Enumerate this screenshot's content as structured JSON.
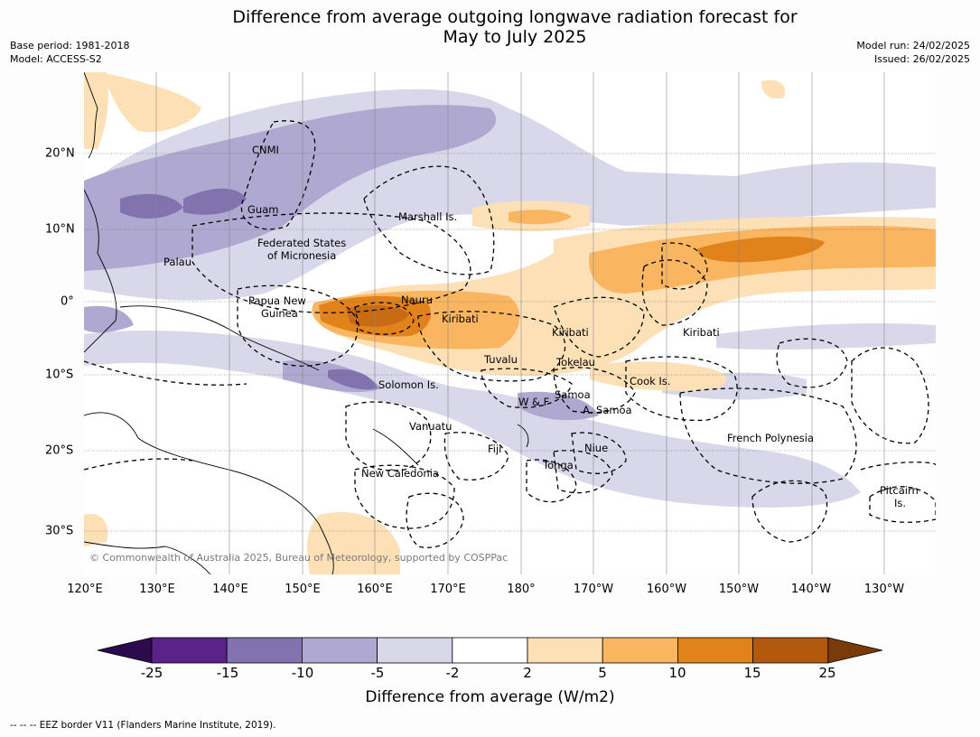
{
  "title_line1": "Difference from average outgoing longwave radiation forecast for",
  "title_line2": "May to July 2025",
  "base_period": "Base period: 1981-2018",
  "model": "Model: ACCESS-S2",
  "model_run": "Model run: 24/02/2025",
  "issued": "Issued: 26/02/2025",
  "lon_labels": [
    "120°E",
    "130°E",
    "140°E",
    "150°E",
    "160°E",
    "170°E",
    "180°",
    "170°W",
    "160°W",
    "150°W",
    "140°W",
    "130°W"
  ],
  "lat_labels": [
    "20°N",
    "10°N",
    "0°",
    "10°S",
    "20°S",
    "30°S"
  ],
  "copyright": "© Commonwealth of Australia 2025, Bureau of Meteorology, supported by COSPPac",
  "region_labels": {
    "cnmi": "CNMI",
    "guam": "Guam",
    "marshall": "Marshall Is.",
    "fsm1": "Federated States",
    "fsm2": "of Micronesia",
    "palau": "Palau",
    "png1": "Papua New",
    "png2": "Guinea",
    "nauru": "Nauru",
    "kiribati_w": "Kiribati",
    "kiribati_c": "Kiribati",
    "kiribati_e": "Kiribati",
    "tuvalu": "Tuvalu",
    "tokelau": "Tokelau",
    "cook": "Cook Is.",
    "solomon": "Solomon Is.",
    "wf": "W & F",
    "samoa": "Samoa",
    "asamoa": "A. Samoa",
    "vanuatu": "Vanuatu",
    "fiji": "Fiji",
    "niue": "Niue",
    "tonga": "Tonga",
    "newcal": "New Caledonia",
    "frpoly": "French Polynesia",
    "pitcairn1": "Pitcairn",
    "pitcairn2": "Is."
  },
  "colorbar": {
    "ticks": [
      "-25",
      "-15",
      "-10",
      "-5",
      "-2",
      "2",
      "5",
      "10",
      "15",
      "25"
    ],
    "colors": [
      "#5a2389",
      "#8272ae",
      "#afa8d0",
      "#d8d8ea",
      "#ffffff",
      "#fde0b6",
      "#f9b560",
      "#e1821b",
      "#b3590e"
    ],
    "under_color": "#2d0a4e",
    "over_color": "#7b3a0a",
    "label": "Difference from average (W/m2)"
  },
  "footnote": "--  --  -- EEZ border V11 (Flanders Marine Institute, 2019)."
}
